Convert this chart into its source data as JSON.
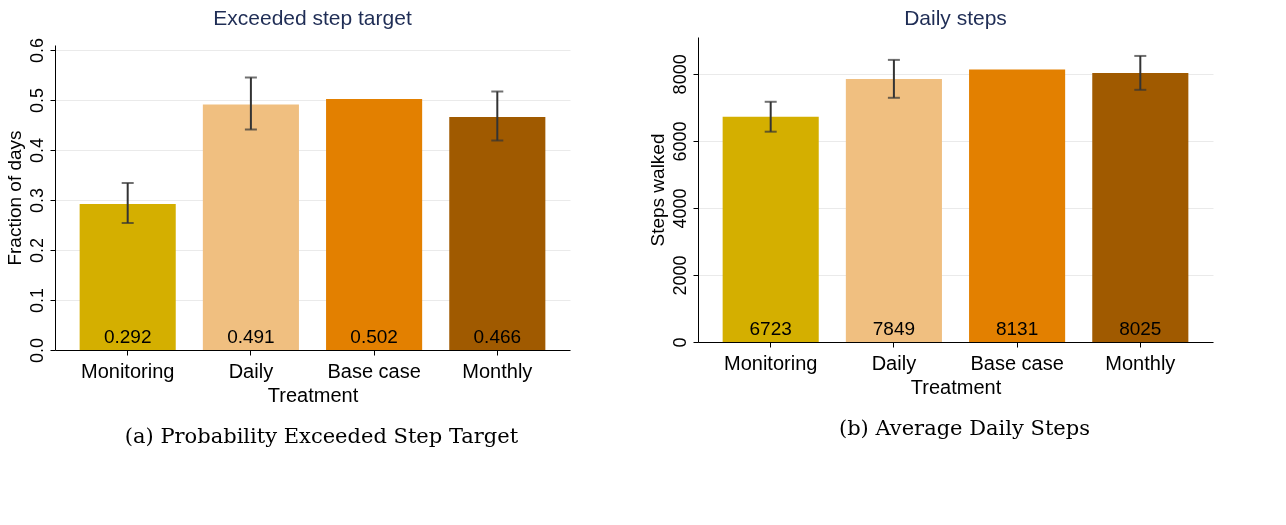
{
  "chart_data": [
    {
      "type": "bar",
      "title": "Exceeded step target",
      "xlabel": "Treatment",
      "ylabel": "Fraction of days",
      "categories": [
        "Monitoring",
        "Daily",
        "Base case",
        "Monthly"
      ],
      "values": [
        0.292,
        0.491,
        0.502,
        0.466
      ],
      "colors": [
        "#d4af00",
        "#f0bf80",
        "#e38000",
        "#a05a00"
      ],
      "errors": [
        [
          0.254,
          0.334
        ],
        [
          0.441,
          0.545
        ],
        null,
        [
          0.419,
          0.517
        ]
      ],
      "ylim": [
        0,
        0.61
      ],
      "yticks": [
        {
          "value": 0,
          "label": "0.0"
        },
        0.1,
        0.2,
        0.3,
        0.4,
        0.5,
        0.6
      ],
      "grid": "y",
      "data_labels": true,
      "annotations": [
        "(a) Probability Exceeded Step Target"
      ]
    },
    {
      "type": "bar",
      "title": "Daily steps",
      "xlabel": "Treatment",
      "ylabel": "Steps walked",
      "categories": [
        "Monitoring",
        "Daily",
        "Base case",
        "Monthly"
      ],
      "values": [
        6723,
        7849,
        8131,
        8025
      ],
      "colors": [
        "#d4af00",
        "#f0bf80",
        "#e38000",
        "#a05a00"
      ],
      "errors": [
        [
          6275,
          7167
        ],
        [
          7286,
          8417
        ],
        null,
        [
          7524,
          8535
        ]
      ],
      "ylim": [
        0,
        9100
      ],
      "yticks": [
        0,
        2000,
        4000,
        6000,
        8000
      ],
      "grid": "y",
      "data_labels": true,
      "annotations": [
        "(b) Average Daily Steps"
      ]
    }
  ]
}
